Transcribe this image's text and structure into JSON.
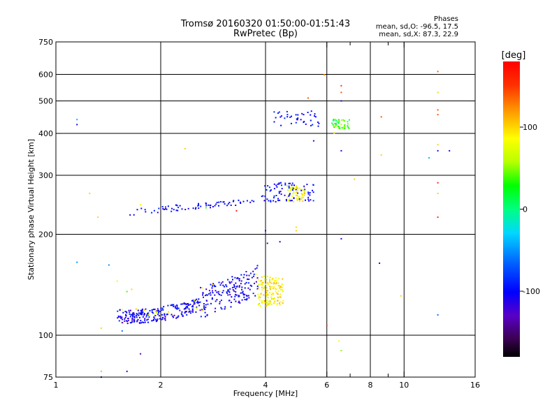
{
  "chart_data": {
    "type": "scatter",
    "title": "Tromsø 20160320 01:50:00-01:51:43",
    "subtitle": "RwPretec (Bp)",
    "xlabel": "Frequency [MHz]",
    "ylabel": "Stationary phase Virtual Height [km]",
    "xscale": "log",
    "yscale": "log",
    "xlim": [
      1,
      16
    ],
    "ylim": [
      75,
      750
    ],
    "x_ticks": [
      1,
      2,
      4,
      6,
      8,
      10,
      16
    ],
    "x_tick_labels": [
      "1",
      "2",
      "4",
      "6",
      "8",
      "10",
      "16"
    ],
    "x_minor_ticks": [
      7,
      9
    ],
    "x_gridlines": [
      2,
      4,
      6,
      8,
      10
    ],
    "y_ticks": [
      75,
      100,
      200,
      300,
      400,
      500,
      600,
      750
    ],
    "y_tick_labels": [
      "75",
      "100",
      "200",
      "300",
      "400",
      "500",
      "600",
      "750"
    ],
    "y_gridlines": [
      100,
      200,
      300,
      400,
      500,
      600
    ],
    "colorbar": {
      "label": "[deg]",
      "range": [
        -180,
        180
      ],
      "ticks": [
        100,
        0,
        -100
      ],
      "tick_labels": [
        "100",
        "0",
        "-100"
      ]
    },
    "stats": {
      "header": "Phases",
      "line_o": "mean, sd,O: -96.5, 17.5",
      "line_x": "mean, sd,X:  87.3, 22.9"
    },
    "clusters": [
      {
        "name": "F-lower-trace-blue",
        "f_range": [
          1.5,
          3.8
        ],
        "h_range": [
          110,
          160
        ],
        "phase": -105,
        "spread": 15
      },
      {
        "name": "F-upper-trace-blue",
        "f_range": [
          1.62,
          3.7
        ],
        "h_range": [
          228,
          255
        ],
        "phase": -100,
        "spread": 15
      },
      {
        "name": "X-mode-yellow-low",
        "f_range": [
          3.8,
          4.5
        ],
        "h_range": [
          125,
          150
        ],
        "phase": 88,
        "spread": 22
      },
      {
        "name": "X-mode-yellow-mid",
        "f_range": [
          4.6,
          5.2
        ],
        "h_range": [
          250,
          280
        ],
        "phase": 85,
        "spread": 22
      },
      {
        "name": "F2-blue-mid",
        "f_range": [
          3.9,
          5.5
        ],
        "h_range": [
          250,
          285
        ],
        "phase": -100,
        "spread": 18
      },
      {
        "name": "F2-blue-high",
        "f_range": [
          4.2,
          5.7
        ],
        "h_range": [
          420,
          470
        ],
        "phase": -100,
        "spread": 15
      },
      {
        "name": "high-green-cluster",
        "f_range": [
          6.2,
          6.9
        ],
        "h_range": [
          415,
          440
        ],
        "phase": 35,
        "spread": 30
      }
    ],
    "isolated_points": [
      {
        "f": 1.15,
        "h": 425,
        "phase": -110
      },
      {
        "f": 1.15,
        "h": 440,
        "phase": -40
      },
      {
        "f": 1.15,
        "h": 165,
        "phase": -50
      },
      {
        "f": 1.25,
        "h": 265,
        "phase": 100
      },
      {
        "f": 1.32,
        "h": 225,
        "phase": 100
      },
      {
        "f": 1.35,
        "h": 78,
        "phase": 110
      },
      {
        "f": 1.35,
        "h": 75,
        "phase": -100
      },
      {
        "f": 1.35,
        "h": 105,
        "phase": 100
      },
      {
        "f": 1.42,
        "h": 162,
        "phase": -50
      },
      {
        "f": 1.5,
        "h": 145,
        "phase": 90
      },
      {
        "f": 1.55,
        "h": 103,
        "phase": -60
      },
      {
        "f": 1.6,
        "h": 135,
        "phase": 40
      },
      {
        "f": 1.6,
        "h": 78,
        "phase": -110
      },
      {
        "f": 1.65,
        "h": 137,
        "phase": 100
      },
      {
        "f": 1.75,
        "h": 88,
        "phase": -130
      },
      {
        "f": 1.75,
        "h": 245,
        "phase": 90
      },
      {
        "f": 2.35,
        "h": 360,
        "phase": 100
      },
      {
        "f": 2.7,
        "h": 240,
        "phase": 40
      },
      {
        "f": 3.3,
        "h": 235,
        "phase": 160
      },
      {
        "f": 4.0,
        "h": 205,
        "phase": -120
      },
      {
        "f": 4.05,
        "h": 188,
        "phase": -120
      },
      {
        "f": 4.4,
        "h": 190,
        "phase": -110
      },
      {
        "f": 4.9,
        "h": 205,
        "phase": 100
      },
      {
        "f": 4.9,
        "h": 210,
        "phase": 100
      },
      {
        "f": 5.3,
        "h": 510,
        "phase": 140
      },
      {
        "f": 5.5,
        "h": 380,
        "phase": -110
      },
      {
        "f": 5.9,
        "h": 598,
        "phase": 120
      },
      {
        "f": 6.0,
        "h": 107,
        "phase": 150
      },
      {
        "f": 6.3,
        "h": 401,
        "phase": 100
      },
      {
        "f": 6.5,
        "h": 96,
        "phase": 90
      },
      {
        "f": 6.6,
        "h": 90,
        "phase": 50
      },
      {
        "f": 6.6,
        "h": 194,
        "phase": -110
      },
      {
        "f": 6.6,
        "h": 355,
        "phase": -110
      },
      {
        "f": 6.6,
        "h": 530,
        "phase": 140
      },
      {
        "f": 6.6,
        "h": 555,
        "phase": 150
      },
      {
        "f": 6.6,
        "h": 500,
        "phase": -110
      },
      {
        "f": 7.2,
        "h": 292,
        "phase": 100
      },
      {
        "f": 8.5,
        "h": 164,
        "phase": -110
      },
      {
        "f": 8.6,
        "h": 345,
        "phase": 100
      },
      {
        "f": 8.6,
        "h": 448,
        "phase": 140
      },
      {
        "f": 9.8,
        "h": 131,
        "phase": 100
      },
      {
        "f": 11.8,
        "h": 338,
        "phase": -40
      },
      {
        "f": 12.5,
        "h": 612,
        "phase": 140
      },
      {
        "f": 12.5,
        "h": 470,
        "phase": 140
      },
      {
        "f": 12.5,
        "h": 455,
        "phase": 140
      },
      {
        "f": 12.5,
        "h": 530,
        "phase": 100
      },
      {
        "f": 12.5,
        "h": 370,
        "phase": 100
      },
      {
        "f": 12.5,
        "h": 355,
        "phase": -110
      },
      {
        "f": 12.5,
        "h": 285,
        "phase": 160
      },
      {
        "f": 12.5,
        "h": 265,
        "phase": 100
      },
      {
        "f": 12.5,
        "h": 225,
        "phase": 150
      },
      {
        "f": 12.5,
        "h": 115,
        "phase": -60
      },
      {
        "f": 13.5,
        "h": 355,
        "phase": -110
      }
    ]
  }
}
